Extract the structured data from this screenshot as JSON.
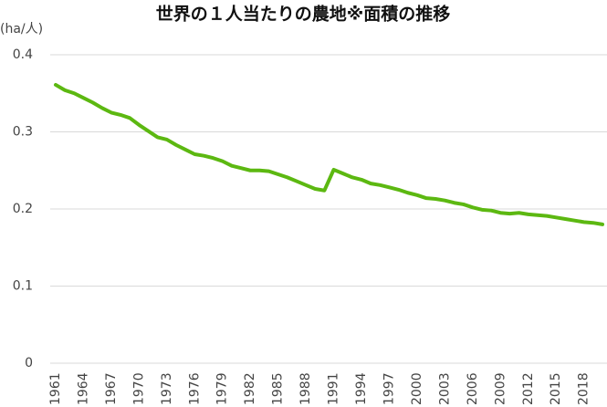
{
  "chart_data": {
    "type": "line",
    "title": "世界の１人当たりの農地※面積の推移",
    "y_label": "(ha/人)",
    "color": "#5cb811",
    "grid": true,
    "x": [
      1961,
      1962,
      1963,
      1964,
      1965,
      1966,
      1967,
      1968,
      1969,
      1970,
      1971,
      1972,
      1973,
      1974,
      1975,
      1976,
      1977,
      1978,
      1979,
      1980,
      1981,
      1982,
      1983,
      1984,
      1985,
      1986,
      1987,
      1988,
      1989,
      1990,
      1991,
      1992,
      1993,
      1994,
      1995,
      1996,
      1997,
      1998,
      1999,
      2000,
      2001,
      2002,
      2003,
      2004,
      2005,
      2006,
      2007,
      2008,
      2009,
      2010,
      2011,
      2012,
      2013,
      2014,
      2015,
      2016,
      2017,
      2018,
      2019,
      2020
    ],
    "values": [
      0.361,
      0.354,
      0.35,
      0.344,
      0.338,
      0.331,
      0.325,
      0.322,
      0.318,
      0.309,
      0.301,
      0.293,
      0.29,
      0.283,
      0.277,
      0.271,
      0.269,
      0.266,
      0.262,
      0.256,
      0.253,
      0.25,
      0.25,
      0.249,
      0.245,
      0.241,
      0.236,
      0.231,
      0.226,
      0.224,
      0.251,
      0.246,
      0.241,
      0.238,
      0.233,
      0.231,
      0.228,
      0.225,
      0.221,
      0.218,
      0.214,
      0.213,
      0.211,
      0.208,
      0.206,
      0.202,
      0.199,
      0.198,
      0.195,
      0.194,
      0.195,
      0.193,
      0.192,
      0.191,
      0.189,
      0.187,
      0.185,
      0.183,
      0.182,
      0.18
    ],
    "xlim": [
      1961,
      2020
    ],
    "xticks": [
      1961,
      1964,
      1967,
      1970,
      1973,
      1976,
      1979,
      1982,
      1985,
      1988,
      1991,
      1994,
      1997,
      2000,
      2003,
      2006,
      2009,
      2012,
      2015,
      2018
    ],
    "ylim": [
      0,
      0.4
    ],
    "yticks": [
      0,
      0.1,
      0.2,
      0.3,
      0.4
    ]
  }
}
